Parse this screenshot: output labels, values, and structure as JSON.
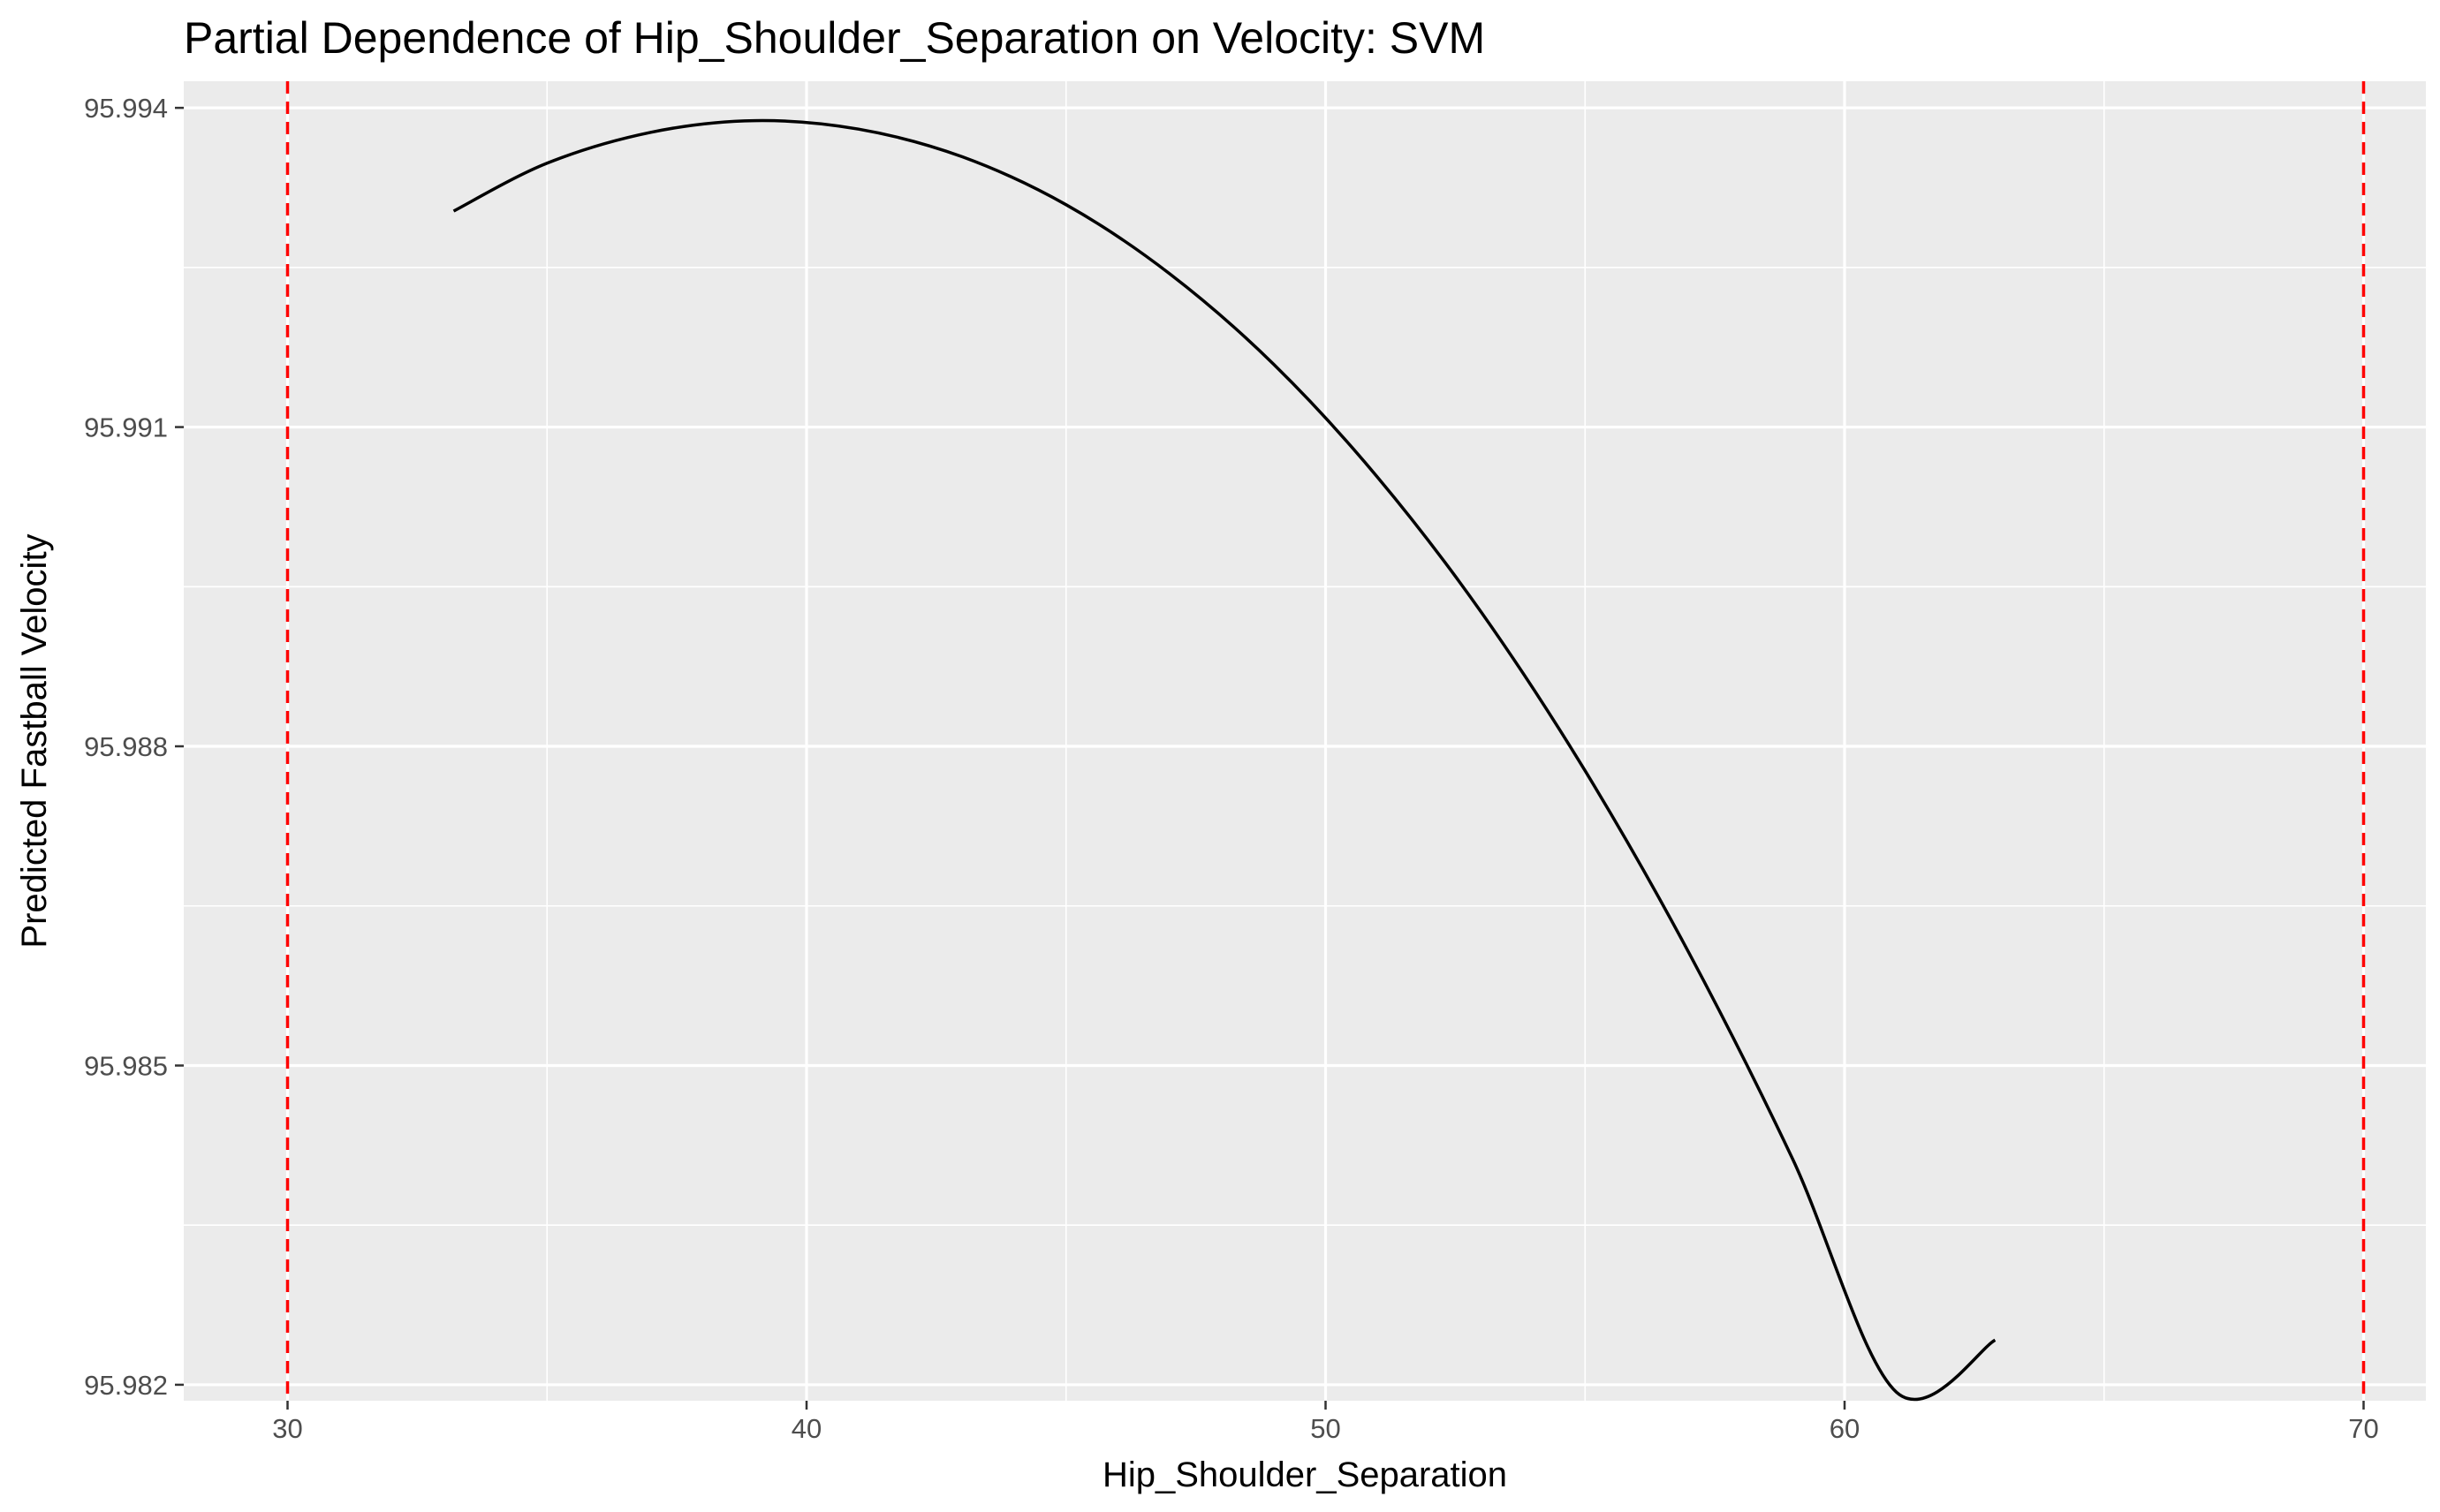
{
  "chart_data": {
    "type": "line",
    "title": "Partial Dependence of Hip_Shoulder_Separation on Velocity: SVM",
    "xlabel": "Hip_Shoulder_Separation",
    "ylabel": "Predicted Fastball Velocity",
    "xlim": [
      28,
      71.2
    ],
    "ylim": [
      95.98185,
      95.99425
    ],
    "x_ticks": [
      30,
      40,
      50,
      60,
      70
    ],
    "x_tick_labels": [
      "30",
      "40",
      "50",
      "60",
      "70"
    ],
    "y_ticks": [
      95.982,
      95.985,
      95.988,
      95.991,
      95.994
    ],
    "y_tick_labels": [
      "95.982",
      "95.985",
      "95.988",
      "95.991",
      "95.994"
    ],
    "grid": true,
    "series": [
      {
        "x": [
          33.2,
          35,
          37,
          39,
          41,
          43,
          45,
          47,
          49,
          51,
          53,
          55,
          57,
          59,
          61,
          62.9
        ],
        "y": [
          95.99303,
          95.99348,
          95.99377,
          95.99388,
          95.9938,
          95.99354,
          95.99309,
          95.99244,
          95.99159,
          95.99053,
          95.98926,
          95.98777,
          95.98606,
          95.98412,
          95.98193,
          95.98242
        ]
      }
    ],
    "reference_lines": [
      {
        "axis": "x",
        "value": 30,
        "style": "dashed",
        "color": "#ff0000"
      },
      {
        "axis": "x",
        "value": 70,
        "style": "dashed",
        "color": "#ff0000"
      }
    ],
    "colors": {
      "panel_background": "#ebebeb",
      "grid": "#ffffff",
      "line": "#000000",
      "reference": "#ff0000"
    }
  }
}
